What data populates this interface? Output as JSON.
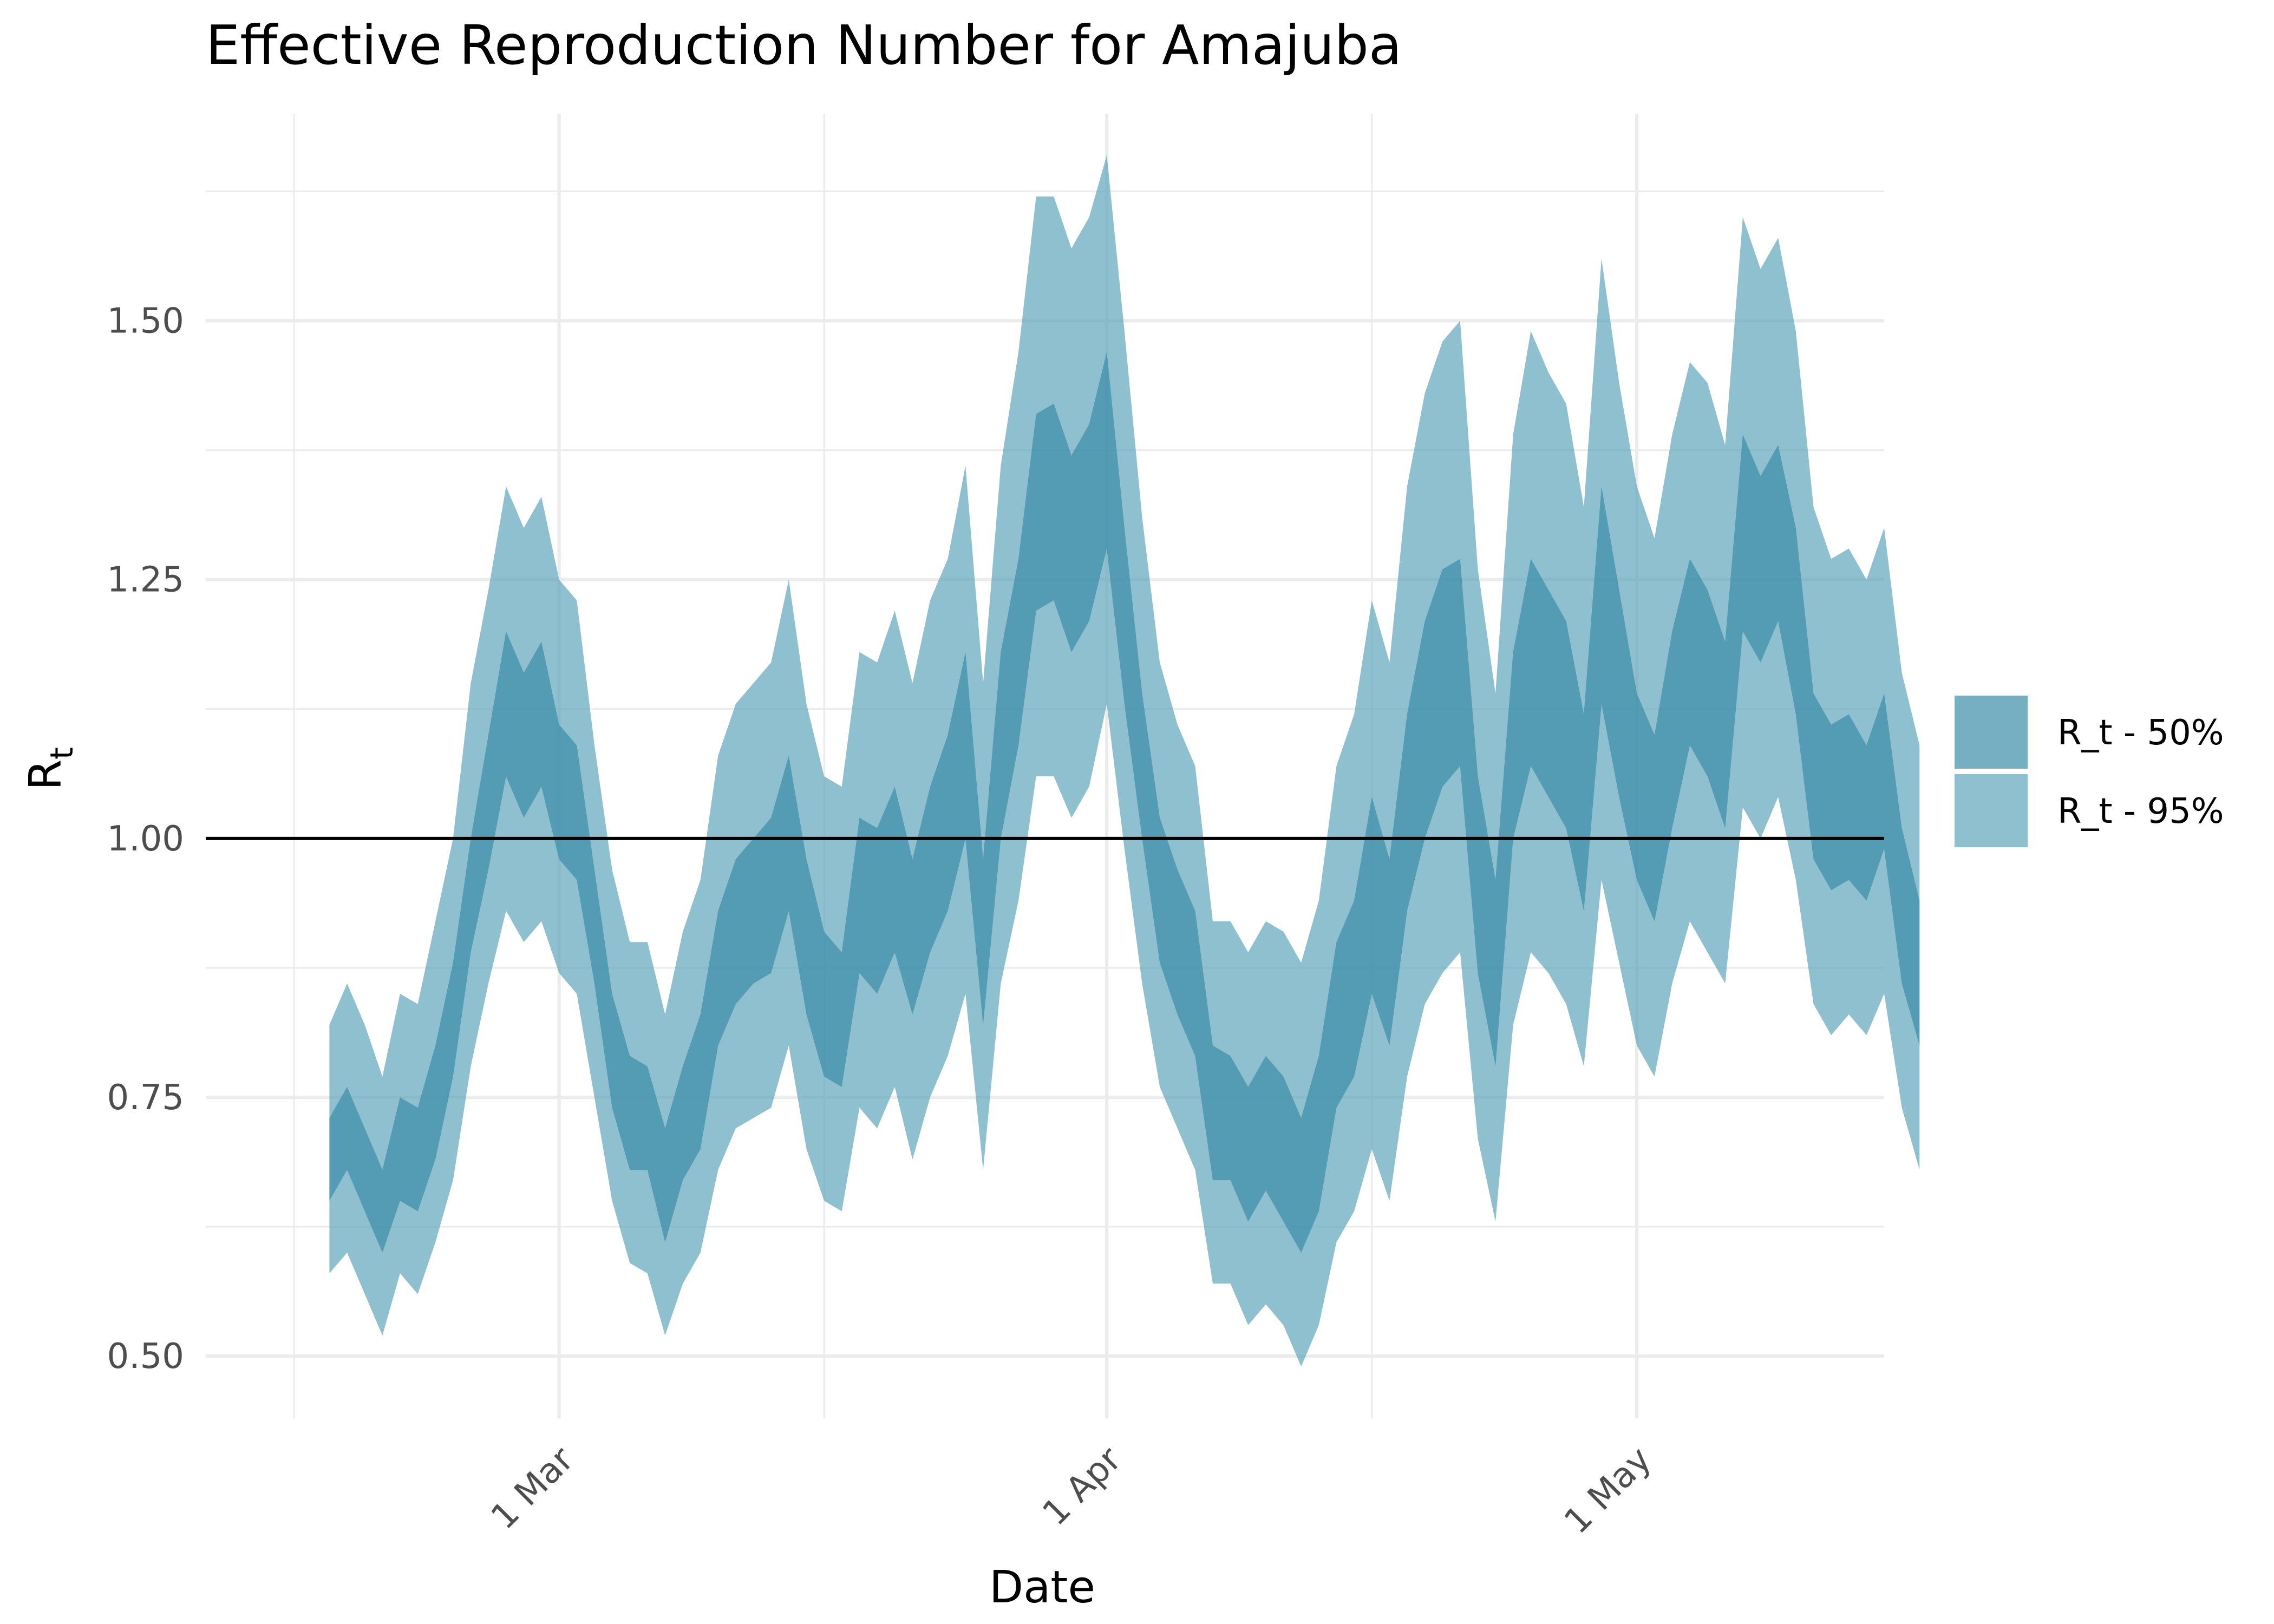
{
  "chart_data": {
    "type": "area",
    "title": "Effective Reproduction Number for Amajuba",
    "xlabel": "Date",
    "ylabel": "R",
    "ylabel_subscript": "t",
    "start_date": "2020-02-17",
    "x_ticks": [
      {
        "date": "2020-03-01",
        "label": "1 Mar"
      },
      {
        "date": "2020-04-01",
        "label": "1 Apr"
      },
      {
        "date": "2020-05-01",
        "label": "1 May"
      }
    ],
    "x_minor_dates": [
      "2020-02-15",
      "2020-03-16",
      "2020-04-16"
    ],
    "xlim": [
      "2020-02-10",
      "2020-05-15"
    ],
    "y_ticks": [
      0.5,
      0.75,
      1.0,
      1.25,
      1.5
    ],
    "y_tick_labels": [
      "0.50",
      "0.75",
      "1.00",
      "1.25",
      "1.50"
    ],
    "y_minor": [
      0.625,
      0.875,
      1.125,
      1.375,
      1.625
    ],
    "ylim": [
      0.44,
      1.7
    ],
    "reference_line": 1.0,
    "grid": true,
    "legend_position": "right",
    "colors": {
      "band_50": "#3c8ca8",
      "band_95": "#5ea5bb",
      "reference": "#000000",
      "grid": "#ebebeb"
    },
    "series": [
      {
        "name": "R_t - 50%",
        "lower": [
          0.65,
          0.68,
          0.64,
          0.6,
          0.65,
          0.64,
          0.69,
          0.77,
          0.89,
          0.97,
          1.06,
          1.02,
          1.05,
          0.98,
          0.96,
          0.86,
          0.74,
          0.68,
          0.68,
          0.61,
          0.67,
          0.7,
          0.8,
          0.84,
          0.86,
          0.87,
          0.93,
          0.83,
          0.77,
          0.76,
          0.87,
          0.85,
          0.89,
          0.83,
          0.89,
          0.93,
          1.0,
          0.82,
          1.0,
          1.09,
          1.22,
          1.23,
          1.18,
          1.21,
          1.28,
          1.13,
          1.0,
          0.88,
          0.83,
          0.79,
          0.67,
          0.67,
          0.63,
          0.66,
          0.63,
          0.6,
          0.64,
          0.74,
          0.77,
          0.85,
          0.8,
          0.93,
          1.0,
          1.05,
          1.07,
          0.87,
          0.78,
          1.0,
          1.07,
          1.04,
          1.01,
          0.93,
          1.13,
          1.04,
          0.96,
          0.92,
          1.01,
          1.09,
          1.06,
          1.01,
          1.2,
          1.17,
          1.21,
          1.12,
          0.98,
          0.95,
          0.96,
          0.94,
          0.99,
          0.86,
          0.8
        ],
        "upper": [
          0.73,
          0.76,
          0.72,
          0.68,
          0.75,
          0.74,
          0.8,
          0.88,
          1.0,
          1.1,
          1.2,
          1.16,
          1.19,
          1.11,
          1.09,
          0.97,
          0.85,
          0.79,
          0.78,
          0.72,
          0.78,
          0.83,
          0.93,
          0.98,
          1.0,
          1.02,
          1.08,
          0.98,
          0.91,
          0.89,
          1.02,
          1.01,
          1.05,
          0.98,
          1.05,
          1.1,
          1.18,
          0.98,
          1.18,
          1.27,
          1.41,
          1.42,
          1.37,
          1.4,
          1.47,
          1.3,
          1.14,
          1.02,
          0.97,
          0.93,
          0.8,
          0.79,
          0.76,
          0.79,
          0.77,
          0.73,
          0.79,
          0.9,
          0.94,
          1.04,
          0.98,
          1.12,
          1.21,
          1.26,
          1.27,
          1.06,
          0.96,
          1.18,
          1.27,
          1.24,
          1.21,
          1.12,
          1.34,
          1.24,
          1.14,
          1.1,
          1.2,
          1.27,
          1.24,
          1.19,
          1.39,
          1.35,
          1.38,
          1.3,
          1.14,
          1.11,
          1.12,
          1.09,
          1.14,
          1.01,
          0.94
        ]
      },
      {
        "name": "R_t - 95%",
        "lower": [
          0.58,
          0.6,
          0.56,
          0.52,
          0.58,
          0.56,
          0.61,
          0.67,
          0.78,
          0.86,
          0.93,
          0.9,
          0.92,
          0.87,
          0.85,
          0.75,
          0.65,
          0.59,
          0.58,
          0.52,
          0.57,
          0.6,
          0.68,
          0.72,
          0.73,
          0.74,
          0.8,
          0.7,
          0.65,
          0.64,
          0.74,
          0.72,
          0.76,
          0.69,
          0.75,
          0.79,
          0.85,
          0.68,
          0.86,
          0.94,
          1.06,
          1.06,
          1.02,
          1.05,
          1.13,
          0.99,
          0.86,
          0.76,
          0.72,
          0.68,
          0.57,
          0.57,
          0.53,
          0.55,
          0.53,
          0.49,
          0.53,
          0.61,
          0.64,
          0.7,
          0.65,
          0.77,
          0.84,
          0.87,
          0.89,
          0.71,
          0.63,
          0.82,
          0.89,
          0.87,
          0.84,
          0.78,
          0.96,
          0.88,
          0.8,
          0.77,
          0.86,
          0.92,
          0.89,
          0.86,
          1.03,
          1.0,
          1.04,
          0.96,
          0.84,
          0.81,
          0.83,
          0.81,
          0.85,
          0.74,
          0.68
        ],
        "upper": [
          0.82,
          0.86,
          0.82,
          0.77,
          0.85,
          0.84,
          0.92,
          1.0,
          1.15,
          1.24,
          1.34,
          1.3,
          1.33,
          1.25,
          1.23,
          1.09,
          0.97,
          0.9,
          0.9,
          0.83,
          0.91,
          0.96,
          1.08,
          1.13,
          1.15,
          1.17,
          1.25,
          1.13,
          1.06,
          1.05,
          1.18,
          1.17,
          1.22,
          1.15,
          1.23,
          1.27,
          1.36,
          1.15,
          1.36,
          1.47,
          1.62,
          1.62,
          1.57,
          1.6,
          1.66,
          1.49,
          1.31,
          1.17,
          1.11,
          1.07,
          0.92,
          0.92,
          0.89,
          0.92,
          0.91,
          0.88,
          0.94,
          1.07,
          1.12,
          1.23,
          1.17,
          1.34,
          1.43,
          1.48,
          1.5,
          1.26,
          1.14,
          1.39,
          1.49,
          1.45,
          1.42,
          1.32,
          1.56,
          1.44,
          1.34,
          1.29,
          1.39,
          1.46,
          1.44,
          1.38,
          1.6,
          1.55,
          1.58,
          1.49,
          1.32,
          1.27,
          1.28,
          1.25,
          1.3,
          1.16,
          1.09
        ]
      }
    ]
  }
}
